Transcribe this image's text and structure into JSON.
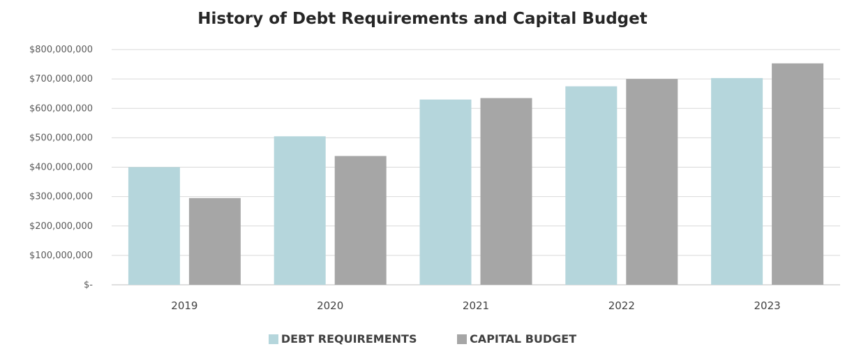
{
  "chart_data": {
    "type": "bar",
    "title": "History of Debt Requirements and Capital Budget",
    "categories": [
      "2019",
      "2020",
      "2021",
      "2022",
      "2023"
    ],
    "series": [
      {
        "name": "DEBT REQUIREMENTS",
        "color": "#b5d6dc",
        "values": [
          400000000,
          505000000,
          630000000,
          675000000,
          703000000
        ]
      },
      {
        "name": "CAPITAL BUDGET",
        "color": "#a6a6a6",
        "values": [
          295000000,
          438000000,
          635000000,
          700000000,
          753000000
        ]
      }
    ],
    "ylim": [
      0,
      800000000
    ],
    "yticks": [
      0,
      100000000,
      200000000,
      300000000,
      400000000,
      500000000,
      600000000,
      700000000,
      800000000
    ],
    "ytick_labels": [
      "$-",
      "$100,000,000",
      "$200,000,000",
      "$300,000,000",
      "$400,000,000",
      "$500,000,000",
      "$600,000,000",
      "$700,000,000",
      "$800,000,000"
    ],
    "xlabel": "",
    "ylabel": "",
    "grid": true,
    "legend_position": "bottom"
  }
}
